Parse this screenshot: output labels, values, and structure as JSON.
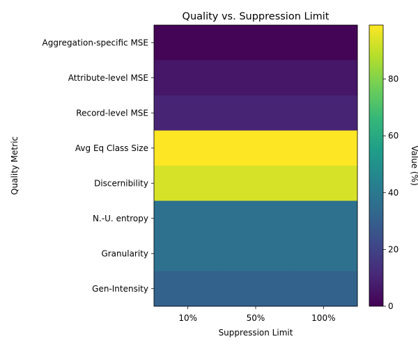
{
  "chart_data": {
    "type": "heatmap",
    "title": "Quality vs. Suppression Limit",
    "xlabel": "Suppression Limit",
    "ylabel": "Quality Metric",
    "x_categories": [
      "10%",
      "50%",
      "100%"
    ],
    "y_categories": [
      "Aggregation-specific MSE",
      "Attribute-level MSE",
      "Record-level MSE",
      "Avg Eq Class Size",
      "Discernibility",
      "N.-U. entropy",
      "Granularity",
      "Gen-Intensity"
    ],
    "values": [
      [
        1,
        1,
        1
      ],
      [
        6,
        6,
        6
      ],
      [
        10,
        10,
        10
      ],
      [
        99,
        99,
        99
      ],
      [
        93,
        93,
        93
      ],
      [
        37,
        37,
        37
      ],
      [
        37,
        37,
        37
      ],
      [
        31,
        31,
        31
      ]
    ],
    "colorbar": {
      "label": "Value (%)",
      "colormap": "viridis",
      "range": [
        0,
        99
      ],
      "ticks": [
        0,
        20,
        40,
        60,
        80
      ]
    }
  }
}
